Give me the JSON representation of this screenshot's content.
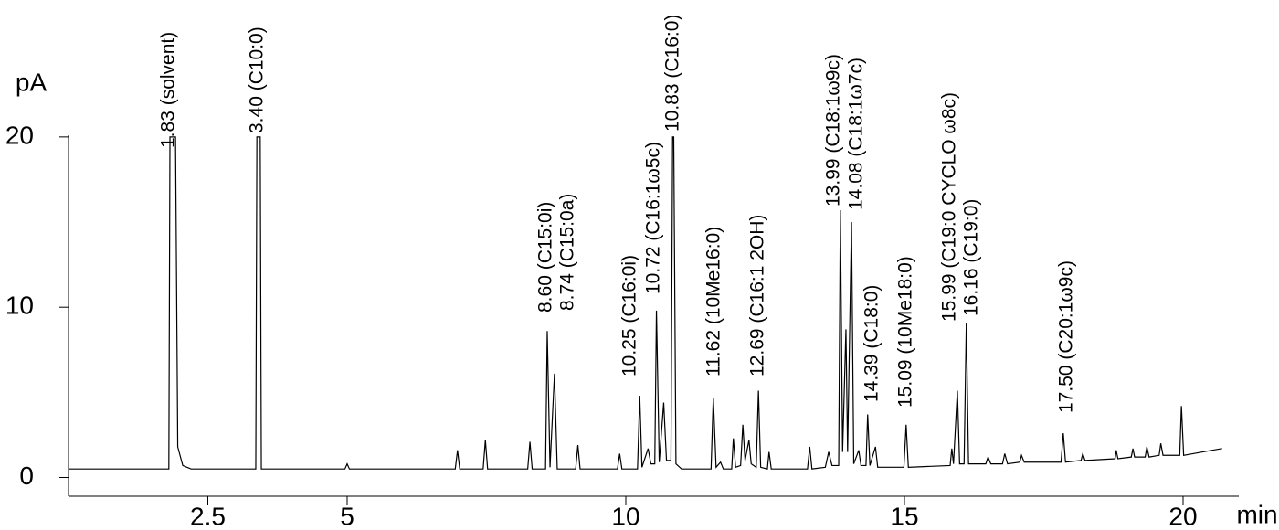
{
  "chart_data": {
    "type": "line",
    "y_label": "pA",
    "x_label": "min",
    "color": "#000000",
    "xlim": [
      0,
      21
    ],
    "ylim": [
      -1.1,
      20.1
    ],
    "xticks": [
      2.5,
      5,
      10,
      15,
      20
    ],
    "yticks": [
      0,
      10,
      20
    ],
    "x": [
      0,
      1.8,
      1.82,
      1.92,
      1.96,
      2.05,
      2.2,
      3.36,
      3.38,
      3.44,
      3.46,
      4.96,
      5.0,
      5.04,
      6.94,
      6.98,
      7.02,
      7.44,
      7.48,
      7.52,
      8.24,
      8.28,
      8.32,
      8.56,
      8.59,
      8.64,
      8.72,
      8.77,
      9.1,
      9.14,
      9.18,
      9.85,
      9.89,
      9.93,
      10.21,
      10.25,
      10.29,
      10.4,
      10.45,
      10.52,
      10.55,
      10.6,
      10.68,
      10.73,
      10.81,
      10.84,
      10.86,
      10.9,
      11.0,
      11.53,
      11.57,
      11.62,
      11.7,
      11.75,
      11.9,
      11.93,
      11.97,
      12.06,
      12.1,
      12.14,
      12.21,
      12.25,
      12.34,
      12.38,
      12.42,
      12.54,
      12.57,
      12.61,
      13.26,
      13.3,
      13.34,
      13.58,
      13.64,
      13.7,
      13.82,
      13.85,
      13.89,
      13.95,
      13.98,
      14.05,
      14.09,
      14.18,
      14.22,
      14.31,
      14.34,
      14.38,
      14.48,
      14.52,
      14.99,
      15.03,
      15.07,
      15.82,
      15.85,
      15.88,
      15.95,
      15.99,
      16.07,
      16.11,
      16.15,
      16.46,
      16.5,
      16.55,
      16.76,
      16.8,
      16.85,
      17.07,
      17.1,
      17.15,
      17.81,
      17.85,
      17.89,
      18.17,
      18.2,
      18.24,
      18.78,
      18.8,
      18.83,
      19.07,
      19.1,
      19.13,
      19.32,
      19.35,
      19.39,
      19.57,
      19.6,
      19.64,
      19.94,
      19.97,
      20.01,
      20.35,
      20.7
    ],
    "values": [
      0.5,
      0.5,
      20,
      20,
      1.8,
      0.7,
      0.5,
      0.5,
      20,
      20,
      0.5,
      0.5,
      0.8,
      0.5,
      0.5,
      1.6,
      0.5,
      0.5,
      2.2,
      0.5,
      0.5,
      2.1,
      0.5,
      0.5,
      8.6,
      0.6,
      6.1,
      0.5,
      0.5,
      1.9,
      0.5,
      0.5,
      1.4,
      0.5,
      0.5,
      4.8,
      0.6,
      1.7,
      0.8,
      0.8,
      9.8,
      0.9,
      4.4,
      1.0,
      1.0,
      20,
      20,
      0.8,
      0.5,
      0.5,
      4.7,
      0.6,
      0.9,
      0.5,
      0.5,
      2.3,
      0.6,
      0.7,
      3.1,
      1.0,
      2.2,
      0.8,
      0.6,
      5.1,
      0.6,
      0.5,
      1.5,
      0.5,
      0.5,
      1.8,
      0.5,
      0.6,
      1.5,
      0.7,
      0.7,
      15.7,
      1.5,
      8.7,
      1.5,
      15.0,
      0.8,
      1.6,
      0.7,
      0.7,
      3.7,
      0.7,
      1.8,
      0.6,
      0.6,
      3.1,
      0.6,
      0.7,
      1.7,
      0.8,
      5.1,
      0.8,
      0.8,
      9.1,
      0.8,
      0.8,
      1.2,
      0.8,
      0.8,
      1.4,
      0.8,
      0.9,
      1.3,
      0.9,
      0.9,
      2.6,
      0.9,
      1.0,
      1.4,
      1.0,
      1.1,
      1.6,
      1.1,
      1.2,
      1.7,
      1.2,
      1.2,
      1.8,
      1.2,
      1.3,
      2.0,
      1.3,
      1.3,
      4.2,
      1.3,
      1.5,
      1.7
    ],
    "annotations": [
      "1.83 (solvent)",
      "3.40 (C10:0)",
      "8.60 (C15:0i)",
      "8.74 (C15:0a)",
      "10.25 (C16:0i)",
      "10.72 (C16:1ω5c)",
      "10.83 (C16:0)",
      "11.62 (10Me16:0)",
      "12.69 (C16:1 2OH)",
      "13.99 (C18:1ω9c)",
      "14.08 (C18:1ω7c)",
      "14.39 (C18:0)",
      "15.09 (10Me18:0)",
      "15.99 (C19:0 CYCLO ω8c)",
      "16.16 (C19:0)",
      "17.50 (C20:1ω9c)"
    ]
  }
}
